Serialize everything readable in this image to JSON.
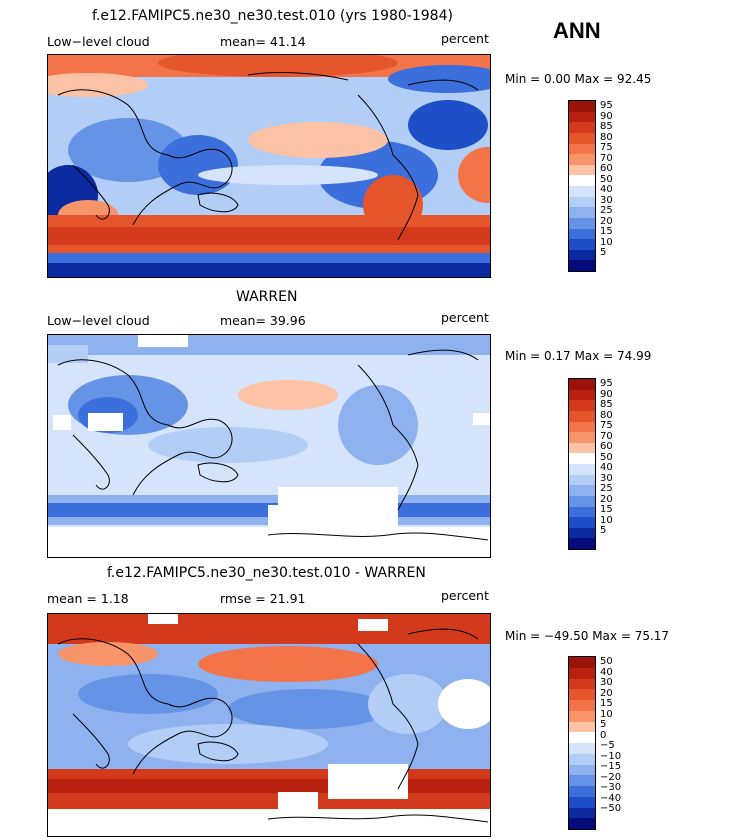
{
  "season": "ANN",
  "panels": [
    {
      "title": "f.e12.FAMIPC5.ne30_ne30.test.010 (yrs 1980-1984)",
      "left_label": "Low−level cloud",
      "stat_label": "mean=  41.14",
      "units": "percent",
      "minmax": "Min =   0.00 Max =  92.45",
      "levels": [
        "95",
        "90",
        "85",
        "80",
        "75",
        "70",
        "60",
        "50",
        "40",
        "30",
        "25",
        "20",
        "15",
        "10",
        "5"
      ],
      "colors": [
        "#9a1208",
        "#b82010",
        "#d33a1c",
        "#e5562c",
        "#f27448",
        "#f8946a",
        "#fcc2a6",
        "#ffffff",
        "#d6e4fb",
        "#b2cdf6",
        "#8db2ef",
        "#6593e6",
        "#3b6fdc",
        "#1e4fc9",
        "#0b2aa0",
        "#050a7a"
      ]
    },
    {
      "title": "WARREN",
      "left_label": "Low−level cloud",
      "stat_label": "mean=  39.96",
      "units": "percent",
      "minmax": "Min =   0.17 Max =  74.99",
      "levels": [
        "95",
        "90",
        "85",
        "80",
        "75",
        "70",
        "60",
        "50",
        "40",
        "30",
        "25",
        "20",
        "15",
        "10",
        "5"
      ],
      "colors": [
        "#9a1208",
        "#b82010",
        "#d33a1c",
        "#e5562c",
        "#f27448",
        "#f8946a",
        "#fcc2a6",
        "#ffffff",
        "#d6e4fb",
        "#b2cdf6",
        "#8db2ef",
        "#6593e6",
        "#3b6fdc",
        "#1e4fc9",
        "#0b2aa0",
        "#050a7a"
      ]
    },
    {
      "title": "f.e12.FAMIPC5.ne30_ne30.test.010 - WARREN",
      "left_label": "mean =    1.18",
      "stat_label": "rmse =  21.91",
      "units": "percent",
      "minmax": "Min = −49.50 Max =  75.17",
      "levels": [
        "50",
        "40",
        "30",
        "20",
        "15",
        "10",
        "5",
        "0",
        "−5",
        "−10",
        "−15",
        "−20",
        "−30",
        "−40",
        "−50"
      ],
      "colors": [
        "#9a1208",
        "#b82010",
        "#d33a1c",
        "#e5562c",
        "#f27448",
        "#f8946a",
        "#fcc2a6",
        "#ffffff",
        "#d6e4fb",
        "#b2cdf6",
        "#8db2ef",
        "#6593e6",
        "#3b6fdc",
        "#1e4fc9",
        "#0b2aa0",
        "#050a7a"
      ]
    }
  ]
}
